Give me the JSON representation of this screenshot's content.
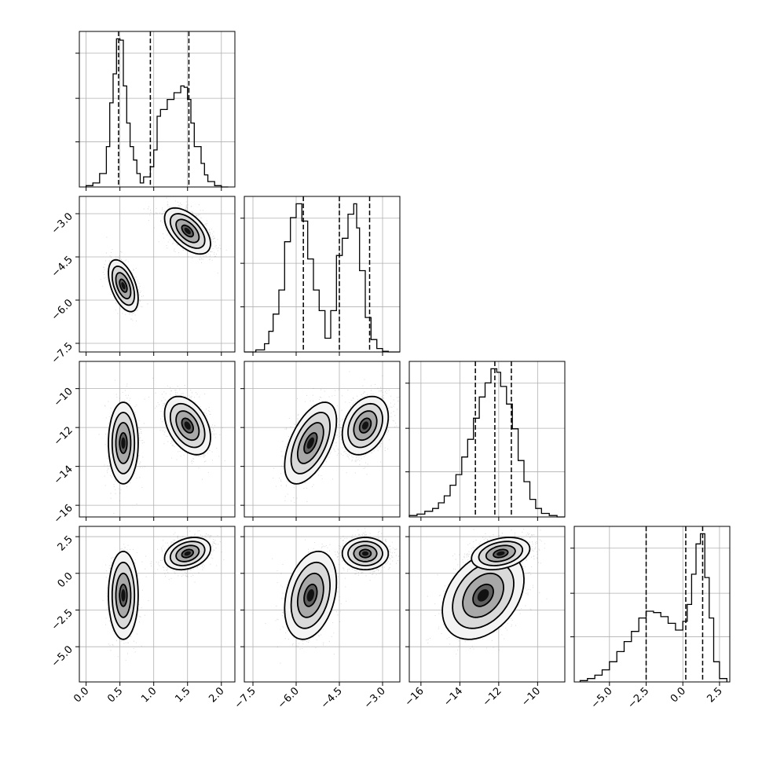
{
  "chart_data": {
    "type": "corner",
    "title": "",
    "grid": true,
    "parameters": [
      {
        "range": [
          -0.1,
          2.2
        ],
        "ticks": [
          0.0,
          0.5,
          1.0,
          1.5,
          2.0
        ],
        "tick_labels": [
          "0.0",
          "0.5",
          "1.0",
          "1.5",
          "2.0"
        ],
        "quantile_lines": [
          0.48,
          0.95,
          1.52
        ],
        "hist": {
          "bin_edges": [
            0.0,
            0.1,
            0.2,
            0.3,
            0.35,
            0.4,
            0.45,
            0.5,
            0.55,
            0.6,
            0.65,
            0.7,
            0.75,
            0.8,
            0.85,
            0.95,
            1.0,
            1.05,
            1.1,
            1.2,
            1.3,
            1.4,
            1.45,
            1.5,
            1.55,
            1.6,
            1.7,
            1.75,
            1.8,
            1.9,
            2.0,
            2.1
          ],
          "counts": [
            2,
            6,
            20,
            60,
            125,
            168,
            220,
            218,
            150,
            95,
            60,
            40,
            20,
            6,
            15,
            30,
            55,
            105,
            115,
            130,
            140,
            150,
            148,
            130,
            95,
            60,
            35,
            18,
            8,
            2,
            0
          ]
        }
      },
      {
        "range": [
          -7.8,
          -2.4
        ],
        "ticks": [
          -7.5,
          -6.0,
          -4.5,
          -3.0
        ],
        "tick_labels": [
          "−7.5",
          "−6.0",
          "−4.5",
          "−3.0"
        ],
        "quantile_lines": [
          -5.75,
          -4.5,
          -3.45
        ],
        "hist": {
          "bin_edges": [
            -7.8,
            -7.4,
            -7.1,
            -6.95,
            -6.8,
            -6.6,
            -6.4,
            -6.2,
            -6.0,
            -5.8,
            -5.6,
            -5.4,
            -5.2,
            -5.0,
            -4.8,
            -4.6,
            -4.4,
            -4.2,
            -4.0,
            -3.9,
            -3.8,
            -3.6,
            -3.4,
            -3.2,
            -3.0,
            -2.8,
            -2.6,
            -2.4
          ],
          "counts": [
            0,
            3,
            12,
            30,
            55,
            90,
            160,
            195,
            215,
            190,
            135,
            90,
            60,
            20,
            60,
            140,
            165,
            200,
            215,
            180,
            118,
            50,
            18,
            5,
            1,
            0,
            0
          ]
        }
      },
      {
        "range": [
          -16.6,
          -8.6
        ],
        "ticks": [
          -16,
          -14,
          -12,
          -10
        ],
        "tick_labels": [
          "−16",
          "−14",
          "−12",
          "−10"
        ],
        "quantile_lines": [
          -13.2,
          -12.2,
          -11.35
        ],
        "hist": {
          "bin_edges": [
            -16.6,
            -16.2,
            -15.8,
            -15.4,
            -15.1,
            -14.8,
            -14.5,
            -14.2,
            -13.9,
            -13.6,
            -13.3,
            -13.0,
            -12.7,
            -12.4,
            -12.1,
            -11.9,
            -11.6,
            -11.3,
            -11.0,
            -10.7,
            -10.4,
            -10.1,
            -9.8,
            -9.4,
            -9.0,
            -8.6
          ],
          "counts": [
            2,
            4,
            8,
            12,
            20,
            30,
            45,
            60,
            85,
            110,
            140,
            170,
            190,
            210,
            205,
            185,
            160,
            125,
            80,
            50,
            25,
            12,
            5,
            2,
            0
          ]
        }
      },
      {
        "range": [
          -7.4,
          3.2
        ],
        "ticks": [
          -5.0,
          -2.5,
          0.0,
          2.5
        ],
        "tick_labels": [
          "−5.0",
          "−2.5",
          "0.0",
          "2.5"
        ],
        "quantile_lines": [
          -2.5,
          0.2,
          1.35
        ],
        "hist": {
          "bin_edges": [
            -7.0,
            -6.5,
            -6.0,
            -5.5,
            -5.0,
            -4.5,
            -4.0,
            -3.5,
            -3.0,
            -2.5,
            -2.0,
            -1.5,
            -1.0,
            -0.5,
            0.0,
            0.3,
            0.6,
            0.9,
            1.2,
            1.5,
            1.8,
            2.1,
            2.5,
            3.0
          ],
          "counts": [
            2,
            5,
            10,
            18,
            30,
            45,
            60,
            75,
            95,
            105,
            103,
            97,
            87,
            77,
            90,
            115,
            160,
            205,
            220,
            155,
            95,
            30,
            5
          ]
        }
      }
    ],
    "modes": [
      {
        "weight": 0.4,
        "mean": [
          0.55,
          -5.5,
          -12.8,
          -1.5
        ],
        "sd": [
          0.11,
          0.45,
          1.05,
          1.5
        ],
        "corr": [
          [
            1,
            -0.5,
            0,
            0
          ],
          [
            -0.5,
            1,
            0.55,
            0.3
          ],
          [
            0,
            0.55,
            1,
            0.35
          ],
          [
            0,
            0.3,
            0.35,
            1
          ]
        ]
      },
      {
        "weight": 0.6,
        "mean": [
          1.5,
          -3.6,
          -11.9,
          1.35
        ],
        "sd": [
          0.17,
          0.4,
          0.75,
          0.55
        ],
        "corr": [
          [
            1,
            -0.55,
            -0.4,
            0.3
          ],
          [
            -0.55,
            1,
            0.3,
            0
          ],
          [
            -0.4,
            0.3,
            1,
            0.3
          ],
          [
            0.3,
            0,
            0.3,
            1
          ]
        ]
      }
    ],
    "contour_levels": [
      0.5,
      1.0,
      1.5,
      2.0
    ]
  }
}
